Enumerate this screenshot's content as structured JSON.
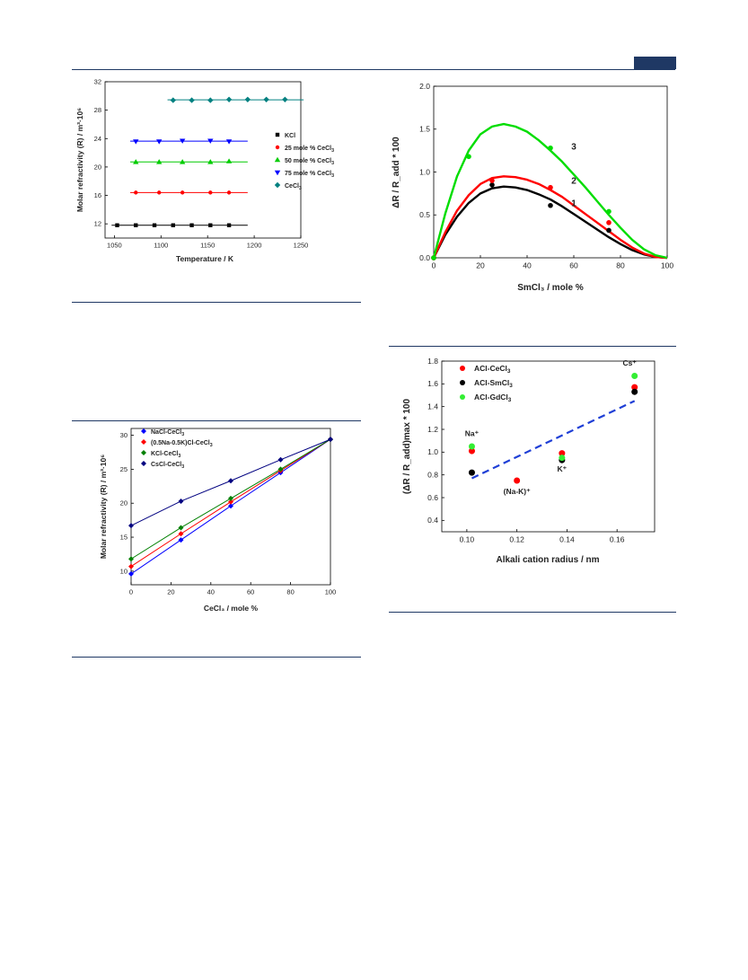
{
  "chart_data": [
    {
      "id": "refractivity_vs_temperature",
      "type": "scatter",
      "xlabel": "Temperature / K",
      "ylabel": "Molar refractivity (R) / m³·10⁶",
      "xlim": [
        1040,
        1250
      ],
      "ylim": [
        10,
        32
      ],
      "xticks": [
        1050,
        1100,
        1150,
        1200,
        1250
      ],
      "yticks": [
        12,
        16,
        20,
        24,
        28,
        32
      ],
      "legend_position": "right",
      "series": [
        {
          "name": "KCl",
          "sub": "",
          "marker": "square",
          "color": "#000000",
          "x": [
            1053,
            1073,
            1093,
            1113,
            1133,
            1153,
            1173
          ],
          "y": [
            11.8,
            11.8,
            11.8,
            11.8,
            11.8,
            11.8,
            11.8
          ]
        },
        {
          "name": "25 mole % CeCl",
          "sub": "3",
          "marker": "circle",
          "color": "#ff0000",
          "x": [
            1073,
            1098,
            1123,
            1153,
            1173
          ],
          "y": [
            16.4,
            16.4,
            16.4,
            16.4,
            16.4
          ]
        },
        {
          "name": "50 mole % CeCl",
          "sub": "3",
          "marker": "triangle-up",
          "color": "#00cc00",
          "x": [
            1073,
            1098,
            1123,
            1153,
            1173
          ],
          "y": [
            20.7,
            20.7,
            20.7,
            20.7,
            20.8
          ]
        },
        {
          "name": "75 mole % CeCl",
          "sub": "3",
          "marker": "triangle-down",
          "color": "#0000ff",
          "x": [
            1073,
            1098,
            1123,
            1153,
            1173
          ],
          "y": [
            23.6,
            23.6,
            23.7,
            23.7,
            23.6
          ]
        },
        {
          "name": "CeCl",
          "sub": "3",
          "marker": "diamond",
          "color": "#008080",
          "x": [
            1113,
            1133,
            1153,
            1173,
            1193,
            1213,
            1233
          ],
          "y": [
            29.4,
            29.4,
            29.4,
            29.5,
            29.5,
            29.5,
            29.5
          ]
        }
      ]
    },
    {
      "id": "refractivity_vs_composition",
      "type": "line",
      "xlabel": "CeCl₃ / mole %",
      "ylabel": "Molar refractivity (R) / m³·10⁶",
      "xlim": [
        0,
        100
      ],
      "ylim": [
        8,
        31
      ],
      "xticks": [
        0,
        20,
        40,
        60,
        80,
        100
      ],
      "yticks": [
        10,
        15,
        20,
        25,
        30
      ],
      "legend_position": "top-left",
      "series": [
        {
          "name": "NaCl-CeCl",
          "sub": "3",
          "color": "#0000ff",
          "x": [
            0,
            25,
            50,
            75,
            100
          ],
          "y": [
            9.6,
            14.6,
            19.6,
            24.5,
            29.4
          ]
        },
        {
          "name": "(0.5Na-0.5K)Cl-CeCl",
          "sub": "3",
          "color": "#ff0000",
          "x": [
            0,
            25,
            50,
            75,
            100
          ],
          "y": [
            10.7,
            15.5,
            20.2,
            24.8,
            29.4
          ]
        },
        {
          "name": "KCl-CeCl",
          "sub": "3",
          "color": "#008000",
          "x": [
            0,
            25,
            50,
            75,
            100
          ],
          "y": [
            11.8,
            16.4,
            20.7,
            25.0,
            29.4
          ]
        },
        {
          "name": "CsCl-CeCl",
          "sub": "3",
          "color": "#000080",
          "x": [
            0,
            25,
            50,
            75,
            100
          ],
          "y": [
            16.7,
            20.3,
            23.3,
            26.4,
            29.4
          ]
        }
      ]
    },
    {
      "id": "deviation_vs_smcl3",
      "type": "line",
      "xlabel": "SmCl₃ / mole %",
      "ylabel": "ΔR / R_add * 100",
      "xlim": [
        0,
        100
      ],
      "ylim": [
        0,
        2
      ],
      "xticks": [
        0,
        20,
        40,
        60,
        80,
        100
      ],
      "yticks": [
        0.0,
        0.5,
        1.0,
        1.5,
        2.0
      ],
      "series": [
        {
          "name": "1",
          "color": "#000000",
          "x": [
            0,
            25,
            50,
            75
          ],
          "y": [
            0,
            0.85,
            0.61,
            0.32
          ],
          "curve_x": [
            0,
            5,
            10,
            15,
            20,
            25,
            30,
            35,
            40,
            45,
            50,
            55,
            60,
            65,
            70,
            75,
            80,
            85,
            90,
            95,
            100
          ],
          "curve_y": [
            0,
            0.27,
            0.48,
            0.64,
            0.75,
            0.81,
            0.83,
            0.82,
            0.79,
            0.74,
            0.68,
            0.6,
            0.51,
            0.42,
            0.33,
            0.24,
            0.16,
            0.09,
            0.04,
            0.01,
            0
          ]
        },
        {
          "name": "2",
          "color": "#ff0000",
          "x": [
            0,
            25,
            50,
            75
          ],
          "y": [
            0,
            0.9,
            0.82,
            0.41
          ],
          "curve_x": [
            0,
            5,
            10,
            15,
            20,
            25,
            30,
            35,
            40,
            45,
            50,
            55,
            60,
            65,
            70,
            75,
            80,
            85,
            90,
            95,
            100
          ],
          "curve_y": [
            0,
            0.3,
            0.55,
            0.73,
            0.86,
            0.93,
            0.95,
            0.94,
            0.91,
            0.86,
            0.79,
            0.71,
            0.61,
            0.51,
            0.41,
            0.31,
            0.21,
            0.12,
            0.05,
            0.01,
            0
          ]
        },
        {
          "name": "3",
          "color": "#00dd00",
          "x": [
            0,
            15,
            50,
            75
          ],
          "y": [
            0,
            1.18,
            1.28,
            0.54
          ],
          "curve_x": [
            0,
            5,
            10,
            15,
            20,
            25,
            30,
            35,
            40,
            45,
            50,
            55,
            60,
            65,
            70,
            75,
            80,
            85,
            90,
            95,
            100
          ],
          "curve_y": [
            0,
            0.52,
            0.95,
            1.25,
            1.44,
            1.53,
            1.56,
            1.53,
            1.47,
            1.37,
            1.25,
            1.12,
            0.97,
            0.82,
            0.66,
            0.5,
            0.35,
            0.21,
            0.1,
            0.03,
            0
          ]
        }
      ]
    },
    {
      "id": "max_deviation_vs_radius",
      "type": "scatter",
      "xlabel": "Alkali cation radius / nm",
      "ylabel": "(ΔR / R_add)max * 100",
      "xlim": [
        0.09,
        0.175
      ],
      "ylim": [
        0.3,
        1.8
      ],
      "xticks": [
        0.1,
        0.12,
        0.14,
        0.16
      ],
      "yticks": [
        0.4,
        0.6,
        0.8,
        1.0,
        1.2,
        1.4,
        1.6,
        1.8
      ],
      "legend_position": "top-left",
      "series": [
        {
          "name": "ACl-CeCl",
          "sub": "3",
          "color": "#ff0000",
          "x": [
            0.102,
            0.12,
            0.138,
            0.167
          ],
          "y": [
            1.01,
            0.75,
            0.99,
            1.57
          ]
        },
        {
          "name": "ACl-SmCl",
          "sub": "3",
          "color": "#000000",
          "x": [
            0.102,
            0.138,
            0.167
          ],
          "y": [
            0.82,
            0.93,
            1.53
          ]
        },
        {
          "name": "ACl-GdCl",
          "sub": "3",
          "color": "#33ee33",
          "x": [
            0.102,
            0.138,
            0.167
          ],
          "y": [
            1.05,
            0.95,
            1.67
          ]
        }
      ],
      "trend_line": {
        "color": "#1f3fd6",
        "x": [
          0.102,
          0.167
        ],
        "y": [
          0.77,
          1.45
        ]
      },
      "annotations": [
        {
          "text": "Na⁺",
          "x": 0.102,
          "y": 1.14
        },
        {
          "text": "(Na-K)⁺",
          "x": 0.12,
          "y": 0.63
        },
        {
          "text": "K⁺",
          "x": 0.138,
          "y": 0.83
        },
        {
          "text": "Cs⁺",
          "x": 0.165,
          "y": 1.76
        }
      ]
    }
  ]
}
